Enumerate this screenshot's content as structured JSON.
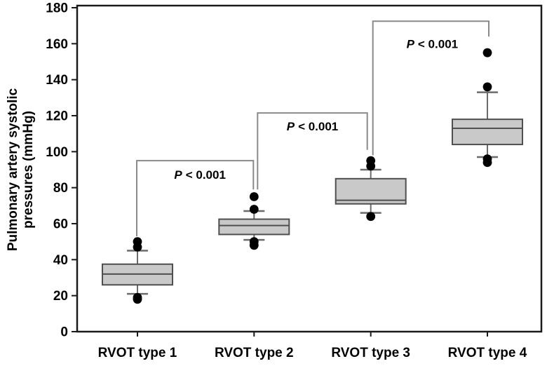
{
  "chart_data": {
    "type": "boxplot",
    "title": "",
    "ylabel": "Pulmonary artery systolic pressures (mmHg)",
    "ylabel_lines": [
      "Pulmonary artery systolic",
      "pressures (mmHg)"
    ],
    "xlabel": "",
    "ylim": [
      0,
      180
    ],
    "yticks": [
      0,
      20,
      40,
      60,
      80,
      100,
      120,
      140,
      160,
      180
    ],
    "grid": false,
    "categories": [
      "RVOT type 1",
      "RVOT type 2",
      "RVOT type 3",
      "RVOT type 4"
    ],
    "series": [
      {
        "category": "RVOT type 1",
        "whisker_low": 21,
        "q1": 26,
        "median": 32,
        "q3": 37.5,
        "whisker_high": 45,
        "outliers_high": [
          50,
          47
        ],
        "outliers_low": [
          19,
          18
        ]
      },
      {
        "category": "RVOT type 2",
        "whisker_low": 51,
        "q1": 54,
        "median": 59,
        "q3": 62.5,
        "whisker_high": 67,
        "outliers_high": [
          75,
          68
        ],
        "outliers_low": [
          50,
          48
        ]
      },
      {
        "category": "RVOT type 3",
        "whisker_low": 66,
        "q1": 71,
        "median": 73,
        "q3": 85,
        "whisker_high": 90,
        "outliers_high": [
          95,
          92
        ],
        "outliers_low": [
          64
        ]
      },
      {
        "category": "RVOT type 4",
        "whisker_low": 97,
        "q1": 104,
        "median": 113,
        "q3": 118,
        "whisker_high": 133,
        "outliers_high": [
          155,
          136
        ],
        "outliers_low": [
          96,
          94
        ]
      }
    ],
    "annotations": [
      {
        "label": "P < 0.001",
        "label_italic": "P",
        "label_rest": "< 0.001",
        "from": 0,
        "to": 1,
        "bracket_top": 95,
        "from_drop": 53,
        "to_drop": 79
      },
      {
        "label": "P < 0.001",
        "label_italic": "P",
        "label_rest": "< 0.001",
        "from": 1,
        "to": 2,
        "bracket_top": 121.5,
        "from_drop": 79,
        "to_drop": 101
      },
      {
        "label": "P < 0.001",
        "label_italic": "P",
        "label_rest": "< 0.001",
        "from": 2,
        "to": 3,
        "bracket_top": 172.5,
        "from_drop": 98,
        "to_drop": 164
      }
    ],
    "colors": {
      "background": "#ffffff",
      "axis": "#1a1a1a",
      "text": "#000000",
      "box_fill": "#c9c9c9",
      "box_border": "#4f4f4f",
      "whisker": "#6b6b6b",
      "bracket": "#8a8a8a",
      "outlier": "#000000"
    }
  }
}
